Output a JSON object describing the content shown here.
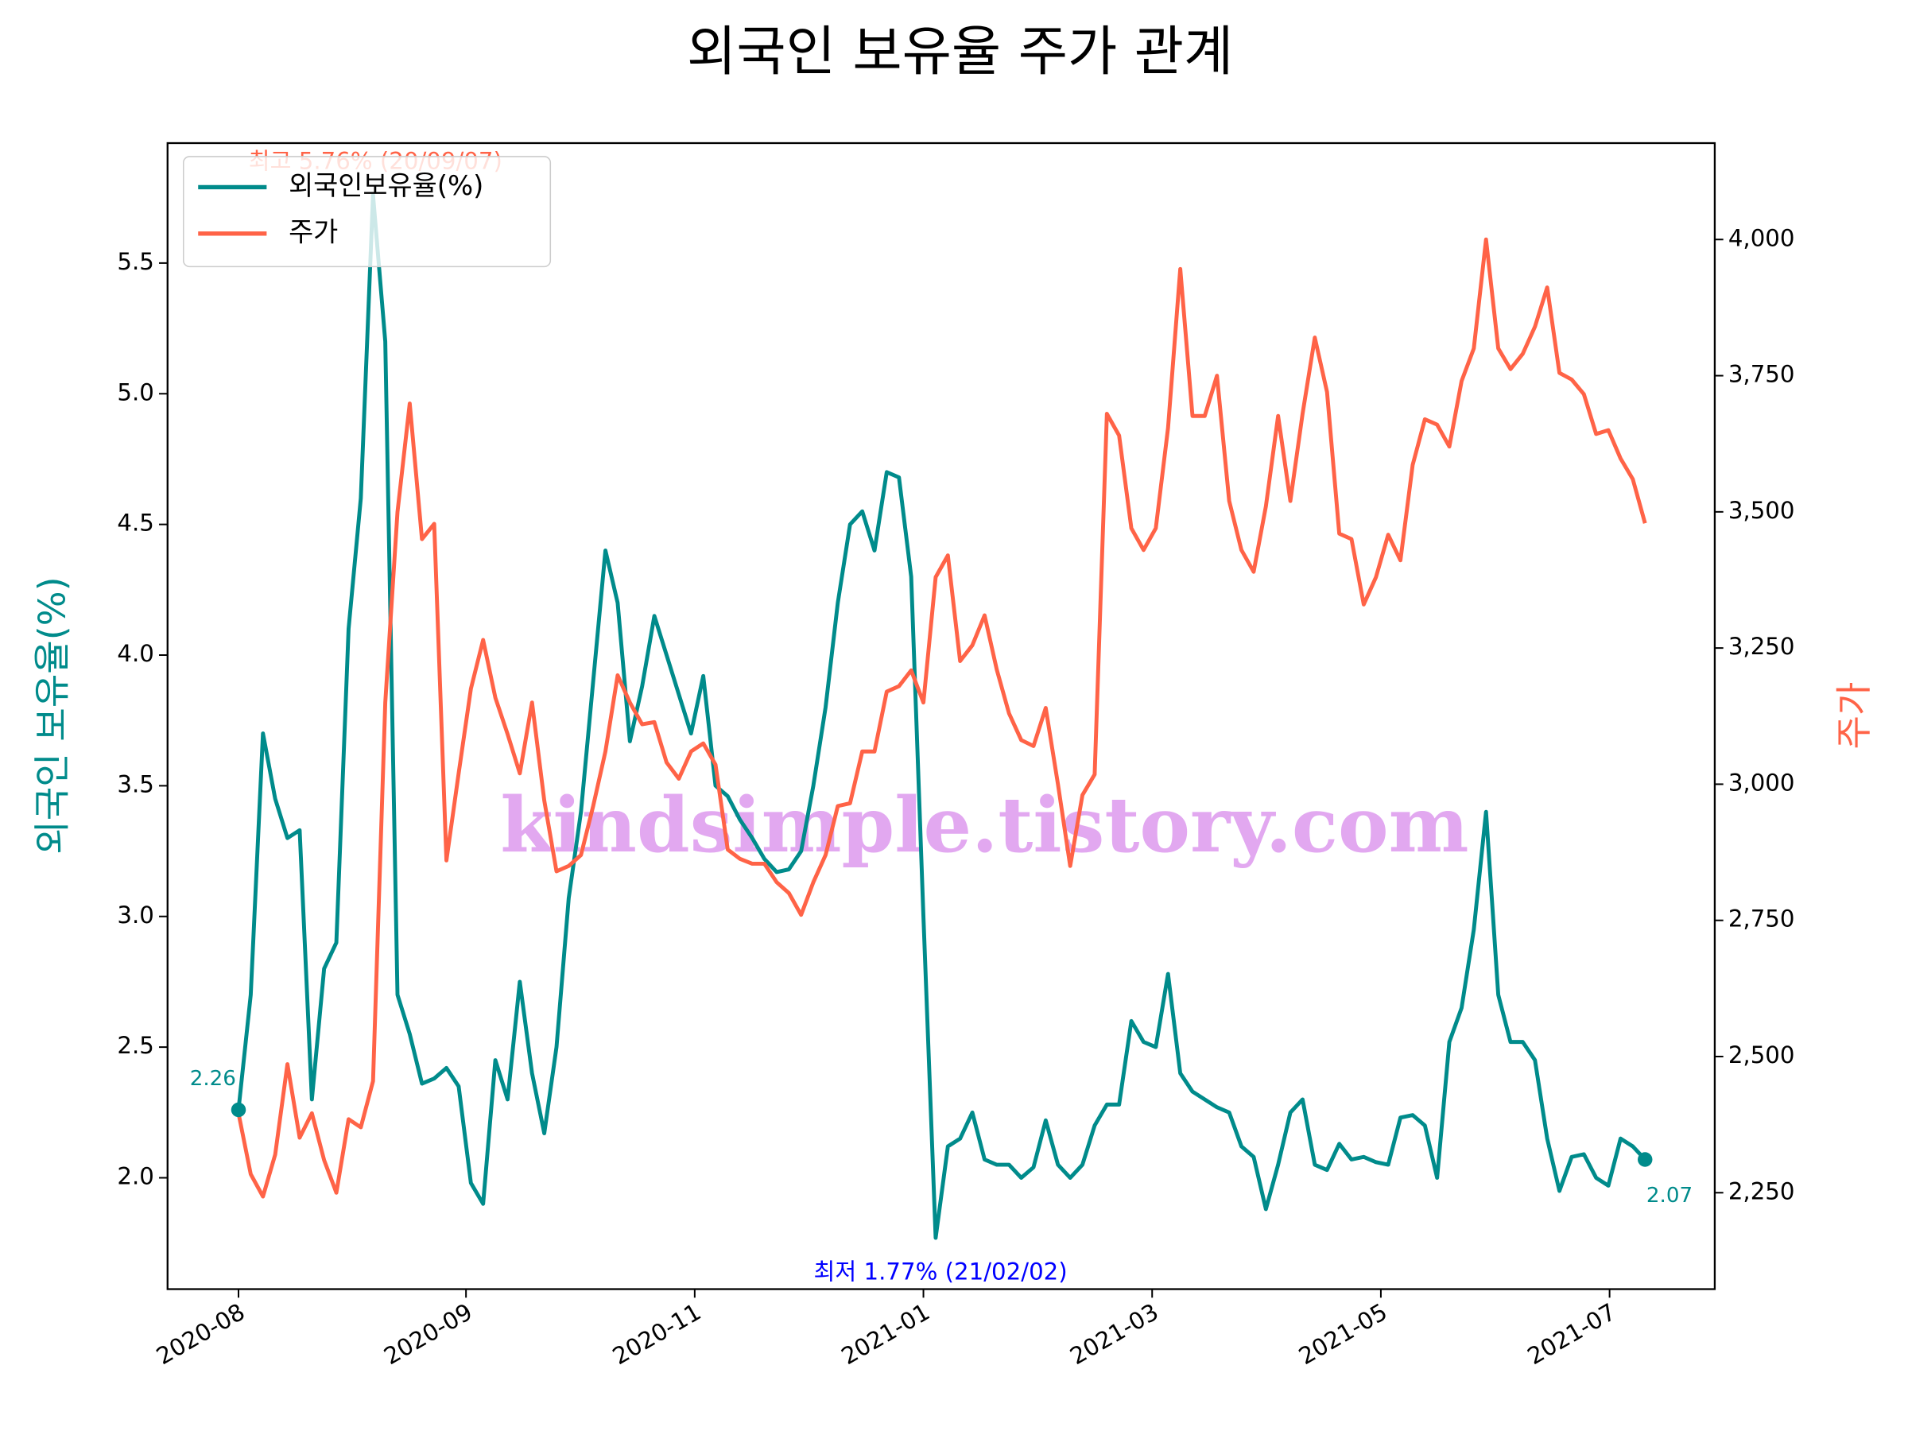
{
  "chart_data": {
    "type": "line",
    "title": "외국인 보유율 주가 관계",
    "ylabel": "외국인 보유율(%)",
    "y2label": "주가",
    "xticks": [
      {
        "value": 0,
        "label": "2020-08"
      },
      {
        "value": 18.6,
        "label": "2020-09"
      },
      {
        "value": 37.3,
        "label": "2020-11"
      },
      {
        "value": 56,
        "label": "2021-01"
      },
      {
        "value": 74.7,
        "label": "2021-03"
      },
      {
        "value": 93.4,
        "label": "2021-05"
      },
      {
        "value": 112.1,
        "label": "2021-07"
      }
    ],
    "xlim": [
      -5.8,
      120.7
    ],
    "ylim": [
      1.574,
      5.959
    ],
    "yticks": [
      {
        "value": 2,
        "label": "2.0"
      },
      2.5,
      {
        "value": 3,
        "label": "3.0"
      },
      3.5,
      {
        "value": 4,
        "label": "4.0"
      },
      4.5,
      {
        "value": 5,
        "label": "5.0"
      },
      5.5
    ],
    "y2lim": [
      2073,
      4177
    ],
    "y2ticks": [
      {
        "value": 2250,
        "label": "2,250"
      },
      {
        "value": 2500,
        "label": "2,500"
      },
      {
        "value": 2750,
        "label": "2,750"
      },
      {
        "value": 3000,
        "label": "3,000"
      },
      {
        "value": 3250,
        "label": "3,250"
      },
      {
        "value": 3500,
        "label": "3,500"
      },
      {
        "value": 3750,
        "label": "3,750"
      },
      {
        "value": 4000,
        "label": "4,000"
      }
    ],
    "legend": "upper left",
    "series": [
      {
        "name": "외국인보유율(%)",
        "color": "#008b8b",
        "values": [
          2.26,
          2.7,
          3.7,
          3.45,
          3.3,
          3.33,
          2.3,
          2.8,
          2.9,
          4.1,
          4.6,
          5.76,
          5.2,
          2.7,
          2.55,
          2.36,
          2.38,
          2.42,
          2.35,
          1.98,
          1.9,
          2.45,
          2.3,
          2.75,
          2.4,
          2.17,
          2.5,
          3.07,
          3.4,
          3.9,
          4.4,
          4.2,
          3.67,
          3.88,
          4.15,
          4.0,
          3.85,
          3.7,
          3.92,
          3.5,
          3.46,
          3.37,
          3.3,
          3.22,
          3.17,
          3.18,
          3.25,
          3.5,
          3.8,
          4.2,
          4.5,
          4.55,
          4.4,
          4.7,
          4.68,
          4.3,
          3.0,
          1.77,
          2.12,
          2.15,
          2.25,
          2.07,
          2.05,
          2.05,
          2.0,
          2.04,
          2.22,
          2.05,
          2.0,
          2.05,
          2.2,
          2.28,
          2.28,
          2.6,
          2.52,
          2.5,
          2.78,
          2.4,
          2.33,
          2.3,
          2.27,
          2.25,
          2.12,
          2.08,
          1.88,
          2.05,
          2.25,
          2.3,
          2.05,
          2.03,
          2.13,
          2.07,
          2.08,
          2.06,
          2.05,
          2.23,
          2.24,
          2.2,
          2.0,
          2.52,
          2.65,
          2.95,
          3.4,
          2.7,
          2.52,
          2.52,
          2.45,
          2.15,
          1.95,
          2.08,
          2.09,
          2.0,
          1.97,
          2.15,
          2.12,
          2.07
        ]
      },
      {
        "name": "주가",
        "color": "#ff6347",
        "axis": "y2",
        "values": [
          2396,
          2284,
          2243,
          2320,
          2486,
          2351,
          2396,
          2310,
          2250,
          2385,
          2370,
          2455,
          3150,
          3500,
          3699,
          3450,
          3478,
          2860,
          3020,
          3175,
          3265,
          3159,
          3092,
          3020,
          3150,
          2970,
          2840,
          2850,
          2870,
          2960,
          3060,
          3200,
          3150,
          3110,
          3114,
          3040,
          3010,
          3060,
          3075,
          3036,
          2880,
          2863,
          2854,
          2854,
          2820,
          2800,
          2760,
          2820,
          2870,
          2960,
          2965,
          3060,
          3060,
          3170,
          3180,
          3209,
          3150,
          3380,
          3420,
          3226,
          3255,
          3310,
          3210,
          3130,
          3081,
          3070,
          3140,
          3000,
          2850,
          2980,
          3018,
          3680,
          3640,
          3470,
          3430,
          3470,
          3654,
          3946,
          3676,
          3676,
          3750,
          3520,
          3430,
          3390,
          3510,
          3676,
          3520,
          3680,
          3820,
          3720,
          3460,
          3450,
          3330,
          3380,
          3458,
          3411,
          3586,
          3670,
          3660,
          3620,
          3740,
          3800,
          4000,
          3800,
          3762,
          3790,
          3840,
          3912,
          3755,
          3743,
          3716,
          3643,
          3650,
          3598,
          3560,
          3479
        ]
      }
    ],
    "annotations": [
      {
        "text": "최고 5.76% (20/09/07)",
        "color": "#ff6347"
      },
      {
        "text": "최저 1.77% (21/02/02)",
        "color": "#0000ff"
      }
    ],
    "watermark": "kindsimple.tistory.com"
  }
}
